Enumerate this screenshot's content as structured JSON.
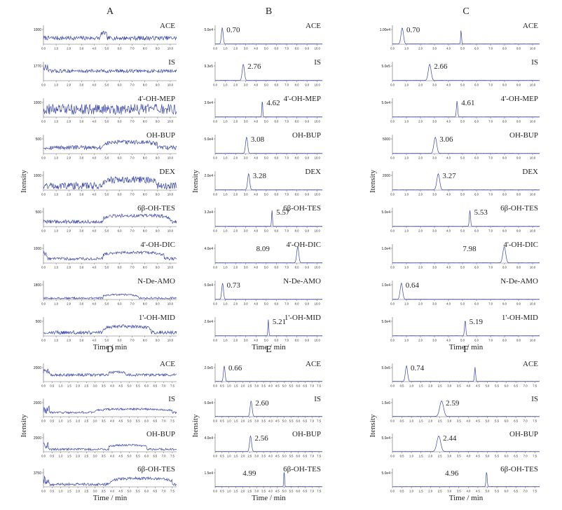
{
  "figure": {
    "ylabel": "Itensity",
    "xlabel": "Time / min",
    "top_ticks": [
      "0.0",
      "1.0",
      "2.0",
      "3.0",
      "4.0",
      "5.0",
      "6.0",
      "7.0",
      "8.0",
      "9.0",
      "10.0"
    ],
    "bottom_ticks": [
      "0.0",
      "0.5",
      "1.0",
      "1.5",
      "2.0",
      "2.5",
      "3.0",
      "3.5",
      "4.0",
      "4.5",
      "5.0",
      "5.5",
      "6.0",
      "6.5",
      "7.0",
      "7.5"
    ]
  },
  "colors": {
    "trace": "#3a46a8",
    "axis": "#666666",
    "text": "#222222"
  },
  "chart_data": [
    {
      "type": "line",
      "panel": "A",
      "mode": "noise",
      "xlim": [
        0,
        10.5
      ],
      "traces": [
        {
          "name": "ACE",
          "ytick": "1000",
          "level": 0.35,
          "noise": 0.12,
          "rise": [
            4.5,
            5.0
          ],
          "rise_amp": 0.28,
          "early": false
        },
        {
          "name": "IS",
          "ytick": "1770",
          "level": 0.55,
          "noise": 0.1,
          "rise": null,
          "rise_amp": 0,
          "early": true
        },
        {
          "name": "4'-OH-MEP",
          "ytick": "1000",
          "level": 0.45,
          "noise": 0.3,
          "rise": null,
          "rise_amp": 0,
          "early": false
        },
        {
          "name": "OH-BUP",
          "ytick": "500",
          "level": 0.35,
          "noise": 0.12,
          "rise": [
            4.7,
            9.0
          ],
          "rise_amp": 0.3,
          "early": false
        },
        {
          "name": "DEX",
          "ytick": "1000",
          "level": 0.25,
          "noise": 0.2,
          "rise": [
            4.7,
            9.0
          ],
          "rise_amp": 0.35,
          "early": false
        },
        {
          "name": "6β-OH-TES",
          "ytick": "500",
          "level": 0.28,
          "noise": 0.1,
          "rise": [
            4.7,
            10.0
          ],
          "rise_amp": 0.35,
          "early": false
        },
        {
          "name": "4'-OH-DIC",
          "ytick": "1000",
          "level": 0.25,
          "noise": 0.08,
          "rise": [
            4.7,
            9.5
          ],
          "rise_amp": 0.35,
          "early": true
        },
        {
          "name": "N-De-AMO",
          "ytick": "1800",
          "level": 0.08,
          "noise": 0.05,
          "rise": [
            4.7,
            7.5
          ],
          "rise_amp": 0.2,
          "early": false
        },
        {
          "name": "1'-OH-MID",
          "ytick": "500",
          "level": 0.2,
          "noise": 0.1,
          "rise": [
            4.7,
            8.5
          ],
          "rise_amp": 0.35,
          "early": false
        }
      ]
    },
    {
      "type": "line",
      "panel": "B",
      "mode": "peaks",
      "xlim": [
        0,
        10.5
      ],
      "traces": [
        {
          "name": "ACE",
          "ytick": "5.0e4",
          "peak": 0.7,
          "label": "0.70",
          "width": 0.12,
          "extra": null
        },
        {
          "name": "IS",
          "ytick": "9.3e5",
          "peak": 2.76,
          "label": "2.76",
          "width": 0.15,
          "extra": null
        },
        {
          "name": "4'-OH-MEP",
          "ytick": "3.6e4",
          "peak": 4.62,
          "label": "4.62",
          "width": 0.06,
          "extra": null
        },
        {
          "name": "OH-BUP",
          "ytick": "5.0e4",
          "peak": 3.08,
          "label": "3.08",
          "width": 0.14,
          "extra": null
        },
        {
          "name": "DEX",
          "ytick": "2.0e4",
          "peak": 3.28,
          "label": "3.28",
          "width": 0.14,
          "extra": null
        },
        {
          "name": "6β-OH-TES",
          "ytick": "3.2e4",
          "peak": 5.57,
          "label": "5.57",
          "width": 0.06,
          "extra": null
        },
        {
          "name": "4'-OH-DIC",
          "ytick": "4.0e4",
          "peak": 8.09,
          "label": "8.09",
          "width": 0.14,
          "extra": null
        },
        {
          "name": "N-De-AMO",
          "ytick": "5.0e4",
          "peak": 0.73,
          "label": "0.73",
          "width": 0.12,
          "extra": null
        },
        {
          "name": "1'-OH-MID",
          "ytick": "2.6e4",
          "peak": 5.21,
          "label": "5.21",
          "width": 0.06,
          "extra": null
        }
      ]
    },
    {
      "type": "line",
      "panel": "C",
      "mode": "peaks",
      "xlim": [
        0,
        10.5
      ],
      "traces": [
        {
          "name": "ACE",
          "ytick": "1.00e4",
          "peak": 0.7,
          "label": "0.70",
          "width": 0.12,
          "extra": 4.9
        },
        {
          "name": "IS",
          "ytick": "5.0e5",
          "peak": 2.66,
          "label": "2.66",
          "width": 0.14,
          "extra": null
        },
        {
          "name": "4'-OH-MEP",
          "ytick": "5.0e4",
          "peak": 4.61,
          "label": "4.61",
          "width": 0.06,
          "extra": null
        },
        {
          "name": "OH-BUP",
          "ytick": "5000",
          "peak": 3.06,
          "label": "3.06",
          "width": 0.14,
          "extra": null
        },
        {
          "name": "DEX",
          "ytick": "2000",
          "peak": 3.27,
          "label": "3.27",
          "width": 0.14,
          "extra": null
        },
        {
          "name": "6β-OH-TES",
          "ytick": "5.0e4",
          "peak": 5.53,
          "label": "5.53",
          "width": 0.06,
          "extra": null
        },
        {
          "name": "4'-OH-DIC",
          "ytick": "1.0e4",
          "peak": 7.98,
          "label": "7.98",
          "width": 0.14,
          "extra": null
        },
        {
          "name": "N-De-AMO",
          "ytick": "1.0e4",
          "peak": 0.64,
          "label": "0.64",
          "width": 0.12,
          "extra": null
        },
        {
          "name": "1'-OH-MID",
          "ytick": "5.0e4",
          "peak": 5.19,
          "label": "5.19",
          "width": 0.06,
          "extra": null
        }
      ]
    },
    {
      "type": "line",
      "panel": "D",
      "mode": "noise",
      "xlim": [
        0,
        7.75
      ],
      "traces": [
        {
          "name": "ACE",
          "ytick": "2000",
          "level": 0.4,
          "noise": 0.08,
          "rise": [
            3.8,
            4.8
          ],
          "rise_amp": 0.15,
          "early": true
        },
        {
          "name": "IS",
          "ytick": "2000",
          "level": 0.25,
          "noise": 0.06,
          "rise": [
            3.0,
            7.5
          ],
          "rise_amp": 0.2,
          "early": true
        },
        {
          "name": "OH-BUP",
          "ytick": "2000",
          "level": 0.15,
          "noise": 0.06,
          "rise": [
            3.8,
            6.0
          ],
          "rise_amp": 0.25,
          "early": true
        },
        {
          "name": "6β-OH-TES",
          "ytick": "3750",
          "level": 0.15,
          "noise": 0.08,
          "rise": [
            3.9,
            7.5
          ],
          "rise_amp": 0.35,
          "early": true
        }
      ]
    },
    {
      "type": "line",
      "panel": "E",
      "mode": "peaks",
      "xlim": [
        0,
        7.75
      ],
      "traces": [
        {
          "name": "ACE",
          "ytick": "2.0e5",
          "peak": 0.66,
          "label": "0.66",
          "width": 0.08,
          "extra": null
        },
        {
          "name": "IS",
          "ytick": "5.0e4",
          "peak": 2.6,
          "label": "2.60",
          "width": 0.1,
          "extra": null
        },
        {
          "name": "OH-BUP",
          "ytick": "4.0e4",
          "peak": 2.56,
          "label": "2.56",
          "width": 0.1,
          "extra": null
        },
        {
          "name": "6β-OH-TES",
          "ytick": "1.5e4",
          "peak": 4.99,
          "label": "4.99",
          "width": 0.04,
          "extra": null
        }
      ]
    },
    {
      "type": "line",
      "panel": "F",
      "mode": "peaks",
      "xlim": [
        0,
        7.75
      ],
      "traces": [
        {
          "name": "ACE",
          "ytick": "5.0e5",
          "peak": 0.74,
          "label": "0.74",
          "width": 0.08,
          "extra": 4.35
        },
        {
          "name": "IS",
          "ytick": "1.5e6",
          "peak": 2.59,
          "label": "2.59",
          "width": 0.14,
          "extra": null
        },
        {
          "name": "OH-BUP",
          "ytick": "5.0e4",
          "peak": 2.44,
          "label": "2.44",
          "width": 0.14,
          "extra": null
        },
        {
          "name": "6β-OH-TES",
          "ytick": "5.0e4",
          "peak": 4.96,
          "label": "4.96",
          "width": 0.04,
          "extra": null
        }
      ]
    }
  ]
}
